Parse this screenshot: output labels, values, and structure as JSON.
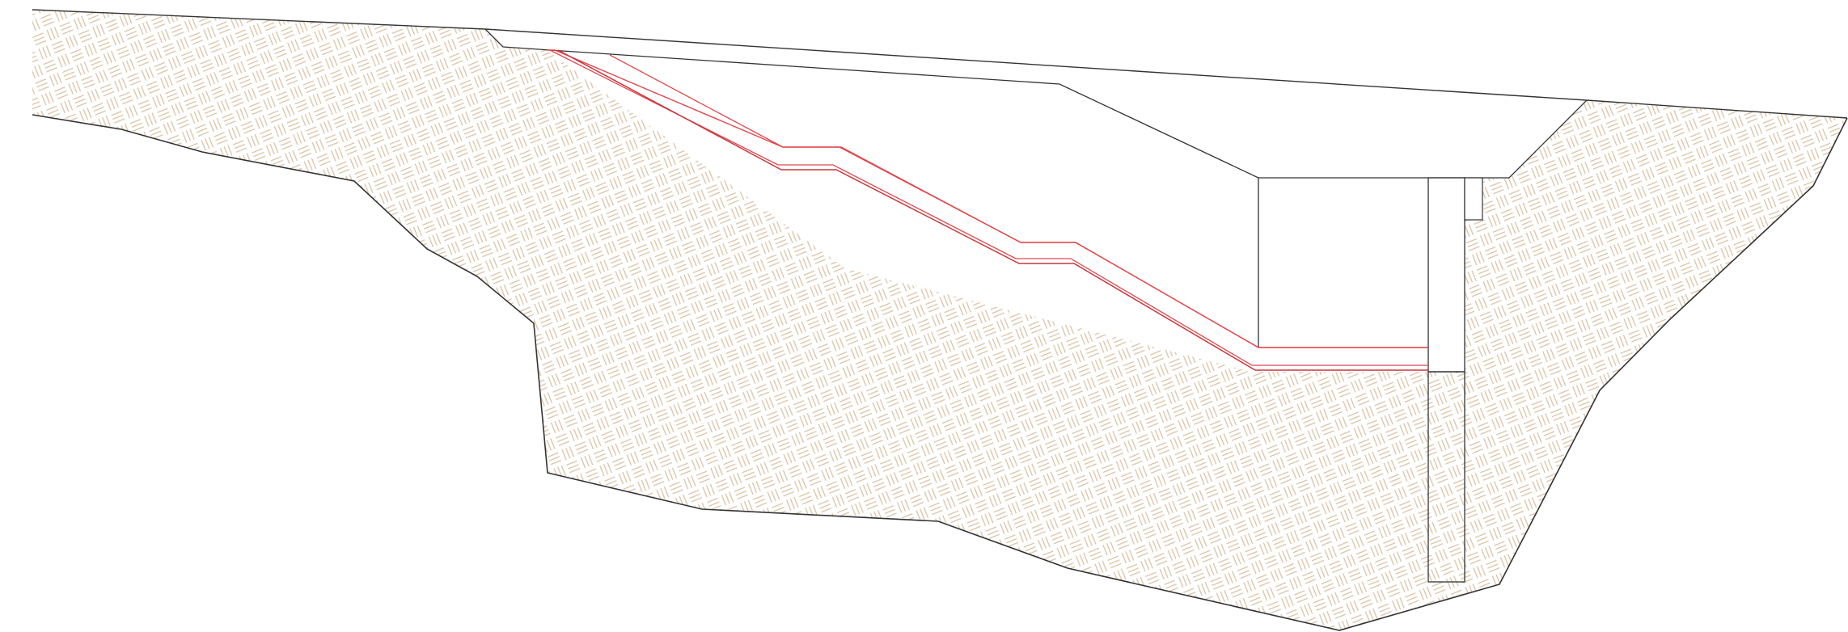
{
  "drawing": {
    "type": "cross-section",
    "colors": {
      "background": "#ffffff",
      "outline": "#333333",
      "layer_lines": "#e0474c",
      "soil_hatch": "#d9c2a3"
    },
    "elements": [
      "soil-embankment",
      "top-ground-line",
      "excavation-outline",
      "geomembrane-layers",
      "box-structure",
      "cutoff-pile",
      "small-cap-block"
    ]
  }
}
